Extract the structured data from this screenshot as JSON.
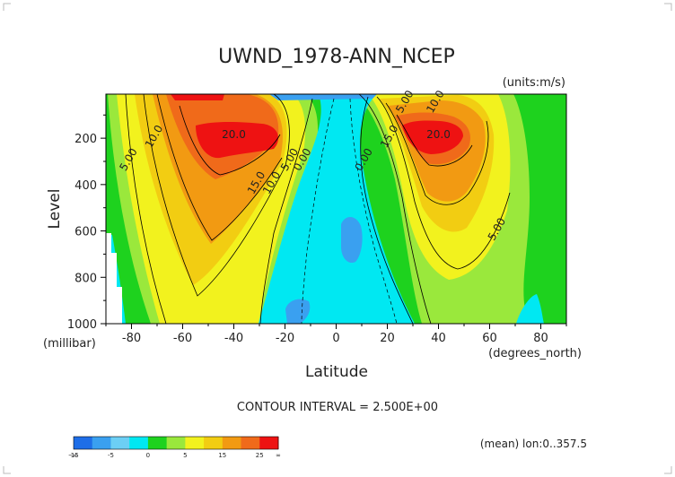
{
  "chart_data": {
    "type": "heatmap",
    "title": "UWND_1978-ANN_NCEP",
    "units_label": "(units:m/s)",
    "xlabel": "Latitude",
    "x_units_label": "(degrees_north)",
    "ylabel": "Level",
    "y_units_label": "(millibar)",
    "xlim": [
      -90,
      90
    ],
    "ylim": [
      1000,
      10
    ],
    "x_ticks": [
      -80,
      -60,
      -40,
      -20,
      0,
      20,
      40,
      60,
      80
    ],
    "y_ticks": [
      200,
      400,
      600,
      800,
      1000
    ],
    "contour_interval_text": "CONTOUR INTERVAL = 2.500E+00",
    "footer_note": "(mean) lon:0..357.5",
    "colorbar": {
      "colors": [
        "#1e6ee8",
        "#3aa0f0",
        "#6ccff5",
        "#00e8f2",
        "#1ed21e",
        "#9ae83c",
        "#f2f21e",
        "#f2cd12",
        "#f29a12",
        "#f06a1a",
        "#ee1212"
      ],
      "tick_labels": [
        "-∞",
        "-15",
        "-5",
        "0",
        "5",
        "15",
        "25",
        "∞"
      ]
    },
    "features": [
      {
        "kind": "jet",
        "value": 20.0,
        "lat": -40,
        "level": 200,
        "label": "20.0"
      },
      {
        "kind": "jet",
        "value": 20.0,
        "lat": 40,
        "level": 200,
        "label": "20.0"
      },
      {
        "kind": "contour_label",
        "value": 10.0,
        "lat": -70,
        "level": 200,
        "label": "10.0"
      },
      {
        "kind": "contour_label",
        "value": 5.0,
        "lat": -80,
        "level": 300,
        "label": "5.00"
      },
      {
        "kind": "contour_label",
        "value": 15.0,
        "lat": -30,
        "level": 400,
        "label": "15.0"
      },
      {
        "kind": "contour_label",
        "value": 10.0,
        "lat": -24,
        "level": 400,
        "label": "10.0"
      },
      {
        "kind": "contour_label",
        "value": 5.0,
        "lat": -17,
        "level": 300,
        "label": "5.00"
      },
      {
        "kind": "contour_label",
        "value": 0.0,
        "lat": -12,
        "level": 300,
        "label": "0.00"
      },
      {
        "kind": "contour_label",
        "value": 0.0,
        "lat": 12,
        "level": 300,
        "label": "0.00"
      },
      {
        "kind": "contour_label",
        "value": 15.0,
        "lat": 22,
        "level": 200,
        "label": "15.0"
      },
      {
        "kind": "contour_label",
        "value": 5.0,
        "lat": 28,
        "level": 50,
        "label": "5.00"
      },
      {
        "kind": "contour_label",
        "value": 10.0,
        "lat": 40,
        "level": 50,
        "label": "10.0"
      },
      {
        "kind": "contour_label",
        "value": 5.0,
        "lat": 64,
        "level": 600,
        "label": "5.00"
      }
    ]
  }
}
